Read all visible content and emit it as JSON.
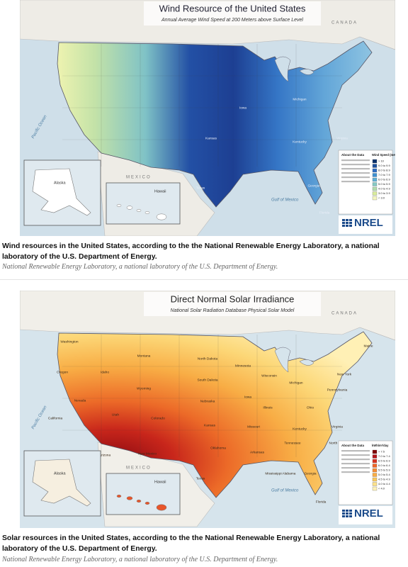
{
  "figures": [
    {
      "map": {
        "title": "Wind Resource of the United States",
        "subtitle": "Annual Average Wind Speed at 200 Meters above Surface Level",
        "canada": "CANADA",
        "mexico": "MEXICO",
        "pacific": "Pacific Ocean",
        "gulf": "Gulf of Mexico",
        "alaska": "Alaska",
        "hawaii": "Hawaii",
        "about": "About the Data",
        "legend_title": "Wind Speed (meters/second)",
        "legend": [
          {
            "label": "> 10",
            "color": "#08306b"
          },
          {
            "label": "9.0 to 9.9",
            "color": "#1c4f9c"
          },
          {
            "label": "8.0 to 8.9",
            "color": "#2b6cc4"
          },
          {
            "label": "7.0 to 7.9",
            "color": "#3e8fd0"
          },
          {
            "label": "6.0 to 6.9",
            "color": "#5fb0d6"
          },
          {
            "label": "5.0 to 5.9",
            "color": "#86c9c4"
          },
          {
            "label": "4.0 to 4.9",
            "color": "#b2dcae"
          },
          {
            "label": "3.0 to 3.9",
            "color": "#d9ec9c"
          },
          {
            "label": "< 3.0",
            "color": "#f4f6bf"
          }
        ],
        "states": [
          "Michigan",
          "Kentucky",
          "Kansas",
          "Texas",
          "Georgia",
          "Florida",
          "Virginia",
          "Iowa"
        ],
        "logo": "NREL"
      },
      "caption": "Wind resources in the United States, according to the the National Renewable Energy Laboratory, a national laboratory of the U.S. Department of Energy.",
      "credit": "National Renewable Energy Laboratory, a national laboratory of the U.S. Department of Energy."
    },
    {
      "map": {
        "title": "Direct Normal Solar Irradiance",
        "subtitle": "National Solar Radiation Database Physical Solar Model",
        "canada": "CANADA",
        "mexico": "MEXICO",
        "pacific": "Pacific Ocean",
        "gulf": "Gulf of Mexico",
        "alaska": "Alaska",
        "hawaii": "Hawaii",
        "about": "About the Data",
        "legend_title": "kWh/m²/day",
        "legend": [
          {
            "label": "> 7.5",
            "color": "#7f0000"
          },
          {
            "label": "7.0 to 7.4",
            "color": "#b3141a"
          },
          {
            "label": "6.5 to 6.9",
            "color": "#d7301f"
          },
          {
            "label": "6.0 to 6.4",
            "color": "#ef6528"
          },
          {
            "label": "5.5 to 5.9",
            "color": "#f58c34"
          },
          {
            "label": "5.0 to 5.4",
            "color": "#f9ad45"
          },
          {
            "label": "4.5 to 4.9",
            "color": "#fbca5e"
          },
          {
            "label": "4.0 to 4.4",
            "color": "#fde28a"
          },
          {
            "label": "< 4.0",
            "color": "#fff2b8"
          }
        ],
        "states": [
          "Washington",
          "Oregon",
          "California",
          "Nevada",
          "Idaho",
          "Montana",
          "Wyoming",
          "Utah",
          "Arizona",
          "Colorado",
          "New Mexico",
          "North Dakota",
          "South Dakota",
          "Nebraska",
          "Kansas",
          "Oklahoma",
          "Texas",
          "Minnesota",
          "Iowa",
          "Missouri",
          "Wisconsin",
          "Illinois",
          "Michigan",
          "Ohio",
          "Pennsylvania",
          "New York",
          "Maine",
          "Kentucky",
          "Tennessee",
          "Georgia",
          "Florida",
          "Alabama",
          "Mississippi",
          "Arkansas",
          "Virginia",
          "North Carolina"
        ],
        "logo": "NREL"
      },
      "caption": "Solar resources in the United States, according to the the National Renewable Energy Laboratory, a national laboratory of the U.S. Department of Energy.",
      "credit": "National Renewable Energy Laboratory, a national laboratory of the U.S. Department of Energy."
    }
  ]
}
